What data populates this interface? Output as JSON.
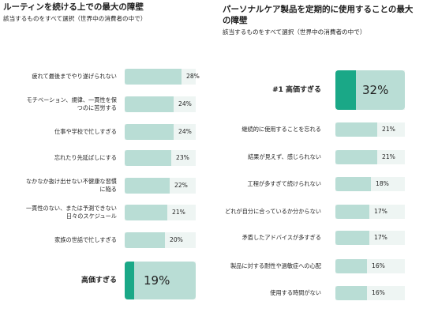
{
  "chart_data": [
    {
      "type": "bar",
      "orientation": "horizontal",
      "title": "ルーティンを続ける上での最大の障壁",
      "subtitle": "該当するものをすべて選択（世界中の消費者の中で）",
      "xlim": [
        0,
        100
      ],
      "bars": [
        {
          "label": "疲れて最後までやり遂げられない",
          "value": 28,
          "display": "28%",
          "highlight": false
        },
        {
          "label": "モチベーション、規律、一貫性を保つのに苦労する",
          "value": 24,
          "display": "24%",
          "highlight": false
        },
        {
          "label": "仕事や学校で忙しすぎる",
          "value": 24,
          "display": "24%",
          "highlight": false
        },
        {
          "label": "忘れたり先延ばしにする",
          "value": 23,
          "display": "23%",
          "highlight": false
        },
        {
          "label": "なかなか抜け出せない不健康な習慣に陥る",
          "value": 22,
          "display": "22%",
          "highlight": false
        },
        {
          "label": "一貫性のない、または予測できない日々のスケジュール",
          "value": 21,
          "display": "21%",
          "highlight": false
        },
        {
          "label": "家族の世話で忙しすぎる",
          "value": 20,
          "display": "20%",
          "highlight": false
        },
        {
          "label": "高価すぎる",
          "value": 19,
          "display": "19%",
          "highlight": true
        }
      ]
    },
    {
      "type": "bar",
      "orientation": "horizontal",
      "title": "パーソナルケア製品を定期的に使用することの最大の障壁",
      "subtitle": "該当するものをすべて選択（世界中の消費者の中で）",
      "xlim": [
        0,
        100
      ],
      "bars": [
        {
          "label": "#1 高価すぎる",
          "value": 32,
          "display": "32%",
          "highlight": true
        },
        {
          "label": "継続的に使用することを忘れる",
          "value": 21,
          "display": "21%",
          "highlight": false
        },
        {
          "label": "結果が見えず、感じられない",
          "value": 21,
          "display": "21%",
          "highlight": false
        },
        {
          "label": "工程が多すぎて続けられない",
          "value": 18,
          "display": "18%",
          "highlight": false
        },
        {
          "label": "どれが自分に合っているか分からない",
          "value": 17,
          "display": "17%",
          "highlight": false
        },
        {
          "label": "矛盾したアドバイスが多すぎる",
          "value": 17,
          "display": "17%",
          "highlight": false
        },
        {
          "label": "製品に対する耐性や過敏症への心配",
          "value": 16,
          "display": "16%",
          "highlight": false
        },
        {
          "label": "使用する時間がない",
          "value": 16,
          "display": "16%",
          "highlight": false
        }
      ]
    }
  ],
  "colors": {
    "fill": "#b9ddd5",
    "track": "#eef5f3",
    "accent": "#1aa887"
  }
}
